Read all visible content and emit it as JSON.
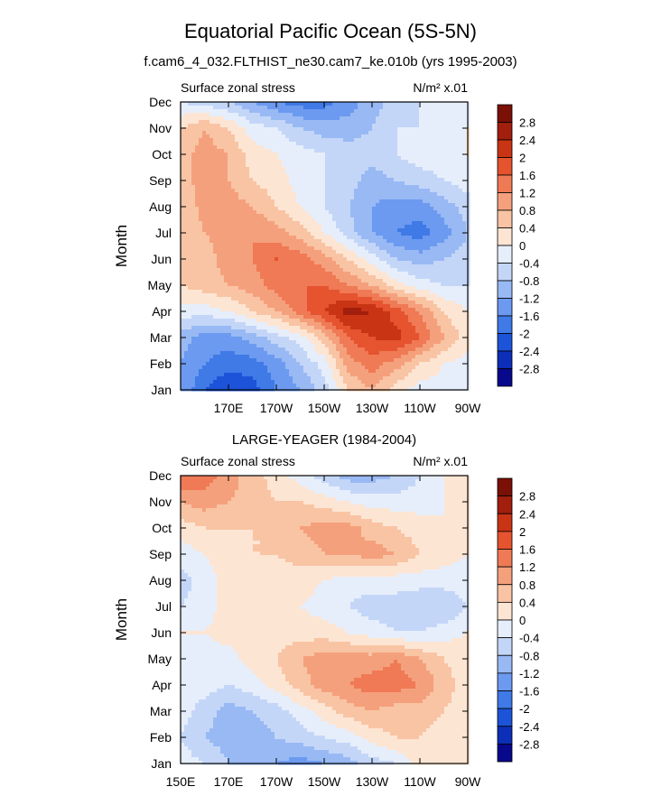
{
  "figure": {
    "title": "Equatorial Pacific Ocean (5S-5N)",
    "subtitle": "f.cam6_4_032.FLTHIST_ne30.cam7_ke.010b (yrs 1995-2003)"
  },
  "palette": [
    "#08088c",
    "#0b2fb8",
    "#1c53d8",
    "#3f7ae6",
    "#6c9af0",
    "#98b9f4",
    "#c4d6f8",
    "#e6eefb",
    "#fde5d3",
    "#f9c4a4",
    "#f5a07c",
    "#ef7a55",
    "#e5532f",
    "#c93414",
    "#a11f0c",
    "#7a1006"
  ],
  "chart_data": [
    {
      "type": "heatmap",
      "title": "",
      "left_label": "Surface zonal stress",
      "right_label": "N/m² x.01",
      "ylabel": "Month",
      "xlabel": "",
      "x": [
        150,
        160,
        170,
        180,
        190,
        200,
        210,
        220,
        230,
        240,
        250,
        260,
        270
      ],
      "x_ticks": [
        {
          "value": 170,
          "label": "170E"
        },
        {
          "value": 190,
          "label": "170W"
        },
        {
          "value": 210,
          "label": "150W"
        },
        {
          "value": 230,
          "label": "130W"
        },
        {
          "value": 250,
          "label": "110W"
        },
        {
          "value": 270,
          "label": "90W"
        }
      ],
      "y_ticks": [
        "Jan",
        "Feb",
        "Mar",
        "Apr",
        "May",
        "Jun",
        "Jul",
        "Aug",
        "Sep",
        "Oct",
        "Nov",
        "Dec"
      ],
      "levels": [
        -2.8,
        -2.4,
        -2.0,
        -1.6,
        -1.2,
        -0.8,
        -0.4,
        0,
        0.4,
        0.8,
        1.2,
        1.6,
        2.0,
        2.4,
        2.8
      ],
      "colorbar_labels": [
        "2.8",
        "2.4",
        "2",
        "1.6",
        "1.2",
        "0.8",
        "0.4",
        "0",
        "-0.4",
        "-0.8",
        "-1.2",
        "-1.6",
        "-2",
        "-2.4",
        "-2.8"
      ],
      "z": [
        [
          -1.2,
          -2.0,
          -2.4,
          -2.2,
          -1.6,
          -1.2,
          -0.6,
          0.4,
          0.8,
          0.2,
          -0.2,
          -0.2,
          -0.2
        ],
        [
          -1.2,
          -1.6,
          -1.8,
          -1.8,
          -1.4,
          -0.8,
          -0.2,
          1.0,
          1.4,
          1.0,
          0.4,
          0.0,
          -0.2
        ],
        [
          -1.0,
          -1.4,
          -1.4,
          -1.0,
          -0.6,
          -0.2,
          0.6,
          1.6,
          2.0,
          2.2,
          1.6,
          0.8,
          0.2
        ],
        [
          -0.2,
          -0.2,
          0.0,
          0.4,
          0.8,
          1.4,
          2.0,
          2.6,
          2.4,
          1.8,
          1.2,
          0.4,
          0.0
        ],
        [
          0.4,
          0.6,
          0.8,
          1.0,
          1.4,
          1.6,
          1.6,
          1.2,
          0.8,
          0.2,
          -0.2,
          -0.4,
          -0.4
        ],
        [
          0.4,
          0.6,
          1.0,
          1.2,
          1.6,
          1.4,
          1.0,
          0.4,
          -0.2,
          -0.8,
          -1.0,
          -0.8,
          -0.6
        ],
        [
          0.4,
          0.8,
          1.0,
          1.2,
          1.0,
          0.6,
          0.0,
          -0.6,
          -1.2,
          -1.6,
          -1.8,
          -1.4,
          -0.8
        ],
        [
          0.4,
          1.0,
          1.0,
          0.8,
          0.4,
          0.0,
          -0.4,
          -0.8,
          -1.2,
          -1.4,
          -1.4,
          -1.0,
          -0.6
        ],
        [
          0.6,
          1.0,
          0.8,
          0.4,
          0.2,
          -0.2,
          -0.4,
          -0.6,
          -1.0,
          -0.8,
          -0.6,
          -0.4,
          -0.2
        ],
        [
          0.6,
          1.0,
          0.8,
          0.2,
          0.0,
          -0.2,
          -0.4,
          -0.6,
          -0.6,
          -0.4,
          -0.2,
          -0.2,
          0.0
        ],
        [
          0.4,
          0.8,
          0.4,
          -0.2,
          -0.4,
          -0.8,
          -1.0,
          -1.0,
          -0.8,
          -0.4,
          -0.4,
          -0.2,
          0.0
        ],
        [
          -0.4,
          -0.6,
          -0.8,
          -1.2,
          -1.6,
          -1.8,
          -1.8,
          -1.4,
          -1.0,
          -0.6,
          -0.4,
          -0.2,
          -0.2
        ]
      ]
    },
    {
      "type": "heatmap",
      "title": "LARGE-YEAGER (1984-2004)",
      "left_label": "Surface zonal stress",
      "right_label": "N/m² x.01",
      "ylabel": "Month",
      "xlabel": "",
      "x": [
        150,
        160,
        170,
        180,
        190,
        200,
        210,
        220,
        230,
        240,
        250,
        260,
        270
      ],
      "x_ticks": [
        {
          "value": 150,
          "label": "150E"
        },
        {
          "value": 170,
          "label": "170E"
        },
        {
          "value": 190,
          "label": "170W"
        },
        {
          "value": 210,
          "label": "150W"
        },
        {
          "value": 230,
          "label": "130W"
        },
        {
          "value": 250,
          "label": "110W"
        },
        {
          "value": 270,
          "label": "90W"
        }
      ],
      "y_ticks": [
        "Jan",
        "Feb",
        "Mar",
        "Apr",
        "May",
        "Jun",
        "Jul",
        "Aug",
        "Sep",
        "Oct",
        "Nov",
        "Dec"
      ],
      "levels": [
        -2.8,
        -2.4,
        -2.0,
        -1.6,
        -1.2,
        -0.8,
        -0.4,
        0,
        0.4,
        0.8,
        1.2,
        1.6,
        2.0,
        2.4,
        2.8
      ],
      "colorbar_labels": [
        "2.8",
        "2.4",
        "2",
        "1.6",
        "1.2",
        "0.8",
        "0.4",
        "0",
        "-0.4",
        "-0.8",
        "-1.2",
        "-1.6",
        "-2",
        "-2.4",
        "-2.8"
      ],
      "z": [
        [
          -0.2,
          -0.4,
          -0.8,
          -1.0,
          -1.2,
          -1.4,
          -1.2,
          -1.0,
          -0.6,
          -0.4,
          0.2,
          0.2,
          0.2
        ],
        [
          -0.4,
          -0.8,
          -1.0,
          -1.0,
          -0.8,
          -0.6,
          -0.4,
          -0.2,
          0.2,
          0.4,
          0.4,
          0.2,
          0.2
        ],
        [
          -0.2,
          -0.6,
          -1.0,
          -0.8,
          -0.6,
          -0.2,
          0.2,
          0.6,
          0.8,
          0.6,
          0.6,
          0.4,
          0.2
        ],
        [
          -0.2,
          -0.2,
          -0.4,
          -0.2,
          0.2,
          0.6,
          1.0,
          1.2,
          1.4,
          1.4,
          1.2,
          0.6,
          0.2
        ],
        [
          0.0,
          -0.2,
          -0.2,
          0.2,
          0.4,
          0.8,
          1.0,
          1.0,
          1.0,
          1.2,
          0.8,
          0.4,
          0.2
        ],
        [
          0.0,
          0.0,
          0.2,
          0.2,
          0.2,
          0.2,
          0.2,
          0.0,
          -0.2,
          -0.4,
          -0.4,
          -0.2,
          0.0
        ],
        [
          -0.4,
          -0.2,
          0.2,
          0.2,
          0.2,
          0.0,
          -0.2,
          -0.4,
          -0.6,
          -0.6,
          -0.8,
          -0.8,
          -0.4
        ],
        [
          -0.6,
          -0.2,
          0.2,
          0.4,
          0.2,
          0.2,
          0.0,
          -0.2,
          -0.2,
          -0.2,
          -0.2,
          -0.2,
          -0.2
        ],
        [
          -0.2,
          0.0,
          0.2,
          0.4,
          0.4,
          0.6,
          0.8,
          0.8,
          1.0,
          0.8,
          0.4,
          0.2,
          0.0
        ],
        [
          0.2,
          0.4,
          0.4,
          0.4,
          0.4,
          0.8,
          1.0,
          1.0,
          0.6,
          0.4,
          0.2,
          0.0,
          0.0
        ],
        [
          0.8,
          1.0,
          0.8,
          0.6,
          0.4,
          0.4,
          0.2,
          0.0,
          -0.2,
          -0.2,
          -0.2,
          0.0,
          0.2
        ],
        [
          1.6,
          1.4,
          1.0,
          0.6,
          0.2,
          -0.2,
          -0.6,
          -1.0,
          -1.0,
          -0.8,
          -0.4,
          0.0,
          0.2
        ]
      ]
    }
  ]
}
